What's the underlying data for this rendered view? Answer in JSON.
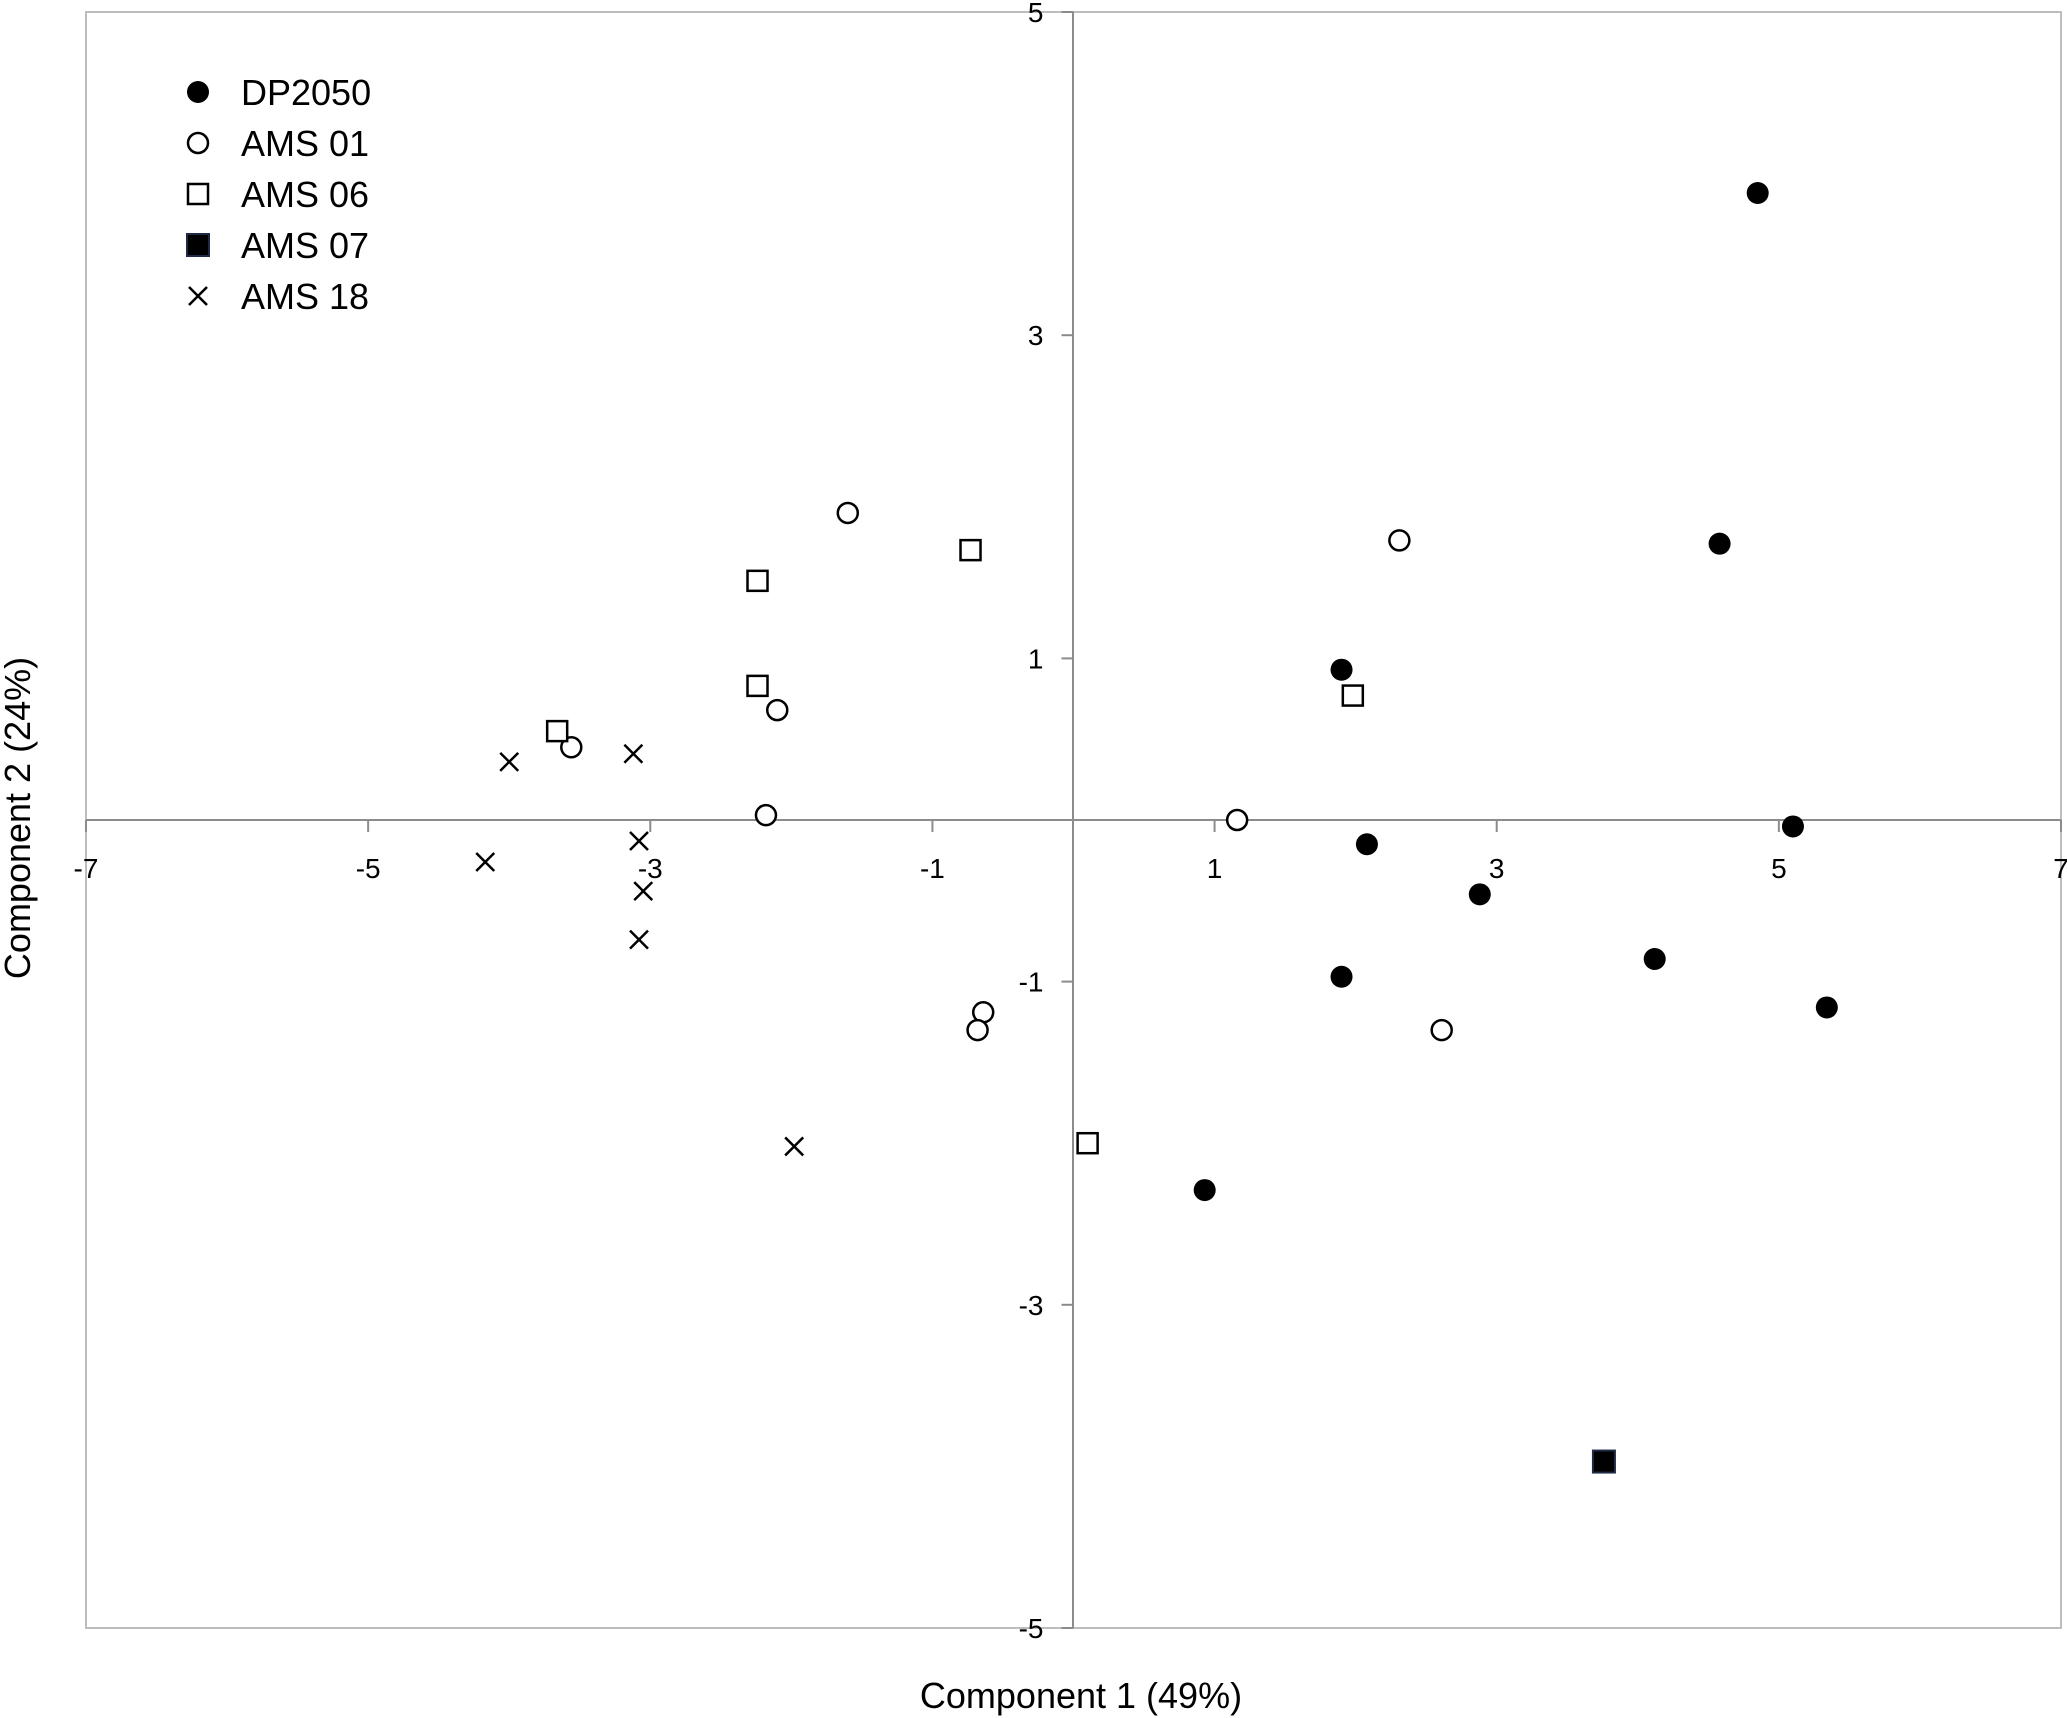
{
  "chart_data": {
    "type": "scatter",
    "title": "",
    "xlabel": "Component 1 (49%)",
    "ylabel": "Component 2 (24%)",
    "xlim": [
      -7,
      7
    ],
    "ylim": [
      -5,
      5
    ],
    "x_ticks": [
      "-7",
      "-5",
      "-3",
      "-1",
      "1",
      "3",
      "5",
      "7"
    ],
    "y_ticks": [
      "5",
      "3",
      "1",
      "-1",
      "-3",
      "-5"
    ],
    "grid": false,
    "legend_position": "top-left",
    "series": [
      {
        "name": "DP2050",
        "marker": "filled-circle",
        "color": "#000000",
        "points": [
          [
            4.85,
            3.88
          ],
          [
            4.58,
            1.71
          ],
          [
            1.9,
            0.93
          ],
          [
            2.08,
            -0.15
          ],
          [
            2.88,
            -0.46
          ],
          [
            5.1,
            -0.04
          ],
          [
            1.9,
            -0.97
          ],
          [
            4.12,
            -0.86
          ],
          [
            5.34,
            -1.16
          ],
          [
            0.93,
            -2.29
          ]
        ]
      },
      {
        "name": "AMS 01",
        "marker": "open-circle",
        "color": "#000000",
        "points": [
          [
            -1.6,
            1.9
          ],
          [
            2.31,
            1.73
          ],
          [
            -2.1,
            0.68
          ],
          [
            -3.56,
            0.45
          ],
          [
            -2.18,
            0.03
          ],
          [
            1.16,
            0.0
          ],
          [
            -0.64,
            -1.19
          ],
          [
            -0.68,
            -1.3
          ],
          [
            2.61,
            -1.3
          ]
        ]
      },
      {
        "name": "AMS 06",
        "marker": "open-square",
        "color": "#000000",
        "points": [
          [
            -0.73,
            1.67
          ],
          [
            -2.24,
            1.48
          ],
          [
            -2.24,
            0.83
          ],
          [
            -3.66,
            0.55
          ],
          [
            1.98,
            0.77
          ],
          [
            0.1,
            -2.0
          ]
        ]
      },
      {
        "name": "AMS 07",
        "marker": "filled-square",
        "color": "#000000",
        "points": [
          [
            3.76,
            -3.97
          ]
        ]
      },
      {
        "name": "AMS 18",
        "marker": "cross",
        "color": "#000000",
        "points": [
          [
            -4.0,
            0.36
          ],
          [
            -3.12,
            0.41
          ],
          [
            -3.08,
            -0.13
          ],
          [
            -4.17,
            -0.26
          ],
          [
            -3.05,
            -0.44
          ],
          [
            -3.08,
            -0.74
          ],
          [
            -1.98,
            -2.02
          ]
        ]
      }
    ]
  }
}
